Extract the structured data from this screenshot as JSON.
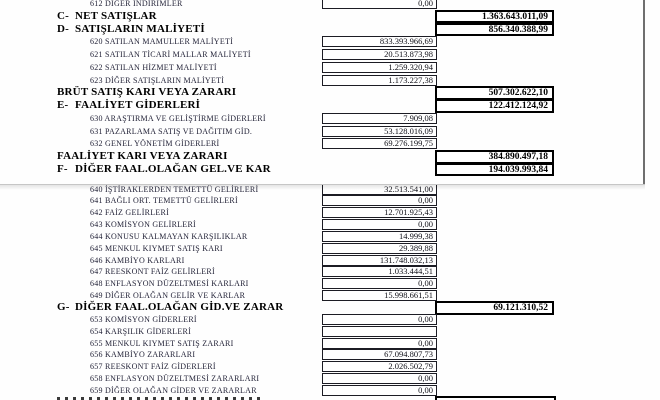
{
  "document": {
    "type_hint": "income-statement",
    "language": "tr"
  },
  "colors": {
    "page_background": "#ffffff",
    "detail_text": "#232338",
    "bold_text": "#000000",
    "box_border_thin": "#1c1c24",
    "box_border_thick": "#000000",
    "pane_vertical_line": "#6f6f6f",
    "pane_horizontal_line": "#c6c6c6"
  },
  "statement": {
    "rows": [
      {
        "kind": "detail",
        "code": "612",
        "label": "DİĞER İNDİRİMLER",
        "value": "0,00"
      },
      {
        "kind": "section",
        "letter": "C-",
        "label": "NET SATIŞLAR",
        "value": "1.363.643.011,09"
      },
      {
        "kind": "section",
        "letter": "D-",
        "label": "SATIŞLARIN MALİYETİ",
        "value": "856.340.388,99"
      },
      {
        "kind": "detail",
        "code": "620",
        "label": "SATILAN MAMULLER MALİYETİ",
        "value": "833.393.966,69"
      },
      {
        "kind": "detail",
        "code": "621",
        "label": "SATILAN TİCARİ MALLAR MALİYETİ",
        "value": "20.513.873,98"
      },
      {
        "kind": "detail",
        "code": "622",
        "label": "SATILAN HİZMET MALİYETİ",
        "value": "1.259.320,94"
      },
      {
        "kind": "detail",
        "code": "623",
        "label": "DİĞER SATIŞLARIN MALİYETİ",
        "value": "1.173.227,38"
      },
      {
        "kind": "total",
        "label": "BRÜT SATIŞ KARI VEYA ZARARI",
        "value": "507.302.622,10"
      },
      {
        "kind": "section",
        "letter": "E-",
        "label": "FAALİYET GİDERLERİ",
        "value": "122.412.124,92"
      },
      {
        "kind": "detail",
        "code": "630",
        "label": "ARAŞTIRMA VE GELİŞTİRME GİDERLERİ",
        "value": "7.909,08"
      },
      {
        "kind": "detail",
        "code": "631",
        "label": "PAZARLAMA SATIŞ VE DAĞITIM GİD.",
        "value": "53.128.016,09"
      },
      {
        "kind": "detail",
        "code": "632",
        "label": "GENEL YÖNETİM GİDERLERİ",
        "value": "69.276.199,75"
      },
      {
        "kind": "total",
        "label": "FAALİYET KARI VEYA ZARARI",
        "value": "384.890.497,18"
      },
      {
        "kind": "section",
        "letter": "F-",
        "label": "DİĞER FAAL.OLAĞAN GEL.VE KAR",
        "value": "194.039.993,84"
      },
      {
        "kind": "detail",
        "code": "640",
        "label": "İŞTİRAKLERDEN TEMETTÜ GELİRLERİ",
        "value": "32.513.541,00"
      },
      {
        "kind": "detail",
        "code": "641",
        "label": "BAĞLI ORT. TEMETTÜ GELİRLERİ",
        "value": "0,00"
      },
      {
        "kind": "detail",
        "code": "642",
        "label": "FAİZ GELİRLERİ",
        "value": "12.701.925,43"
      },
      {
        "kind": "detail",
        "code": "643",
        "label": "KOMİSYON GELİRLERİ",
        "value": "0,00"
      },
      {
        "kind": "detail",
        "code": "644",
        "label": "KONUSU KALMAYAN KARŞILIKLAR",
        "value": "14.999,38"
      },
      {
        "kind": "detail",
        "code": "645",
        "label": "MENKUL KIYMET SATIŞ KARI",
        "value": "29.389,88"
      },
      {
        "kind": "detail",
        "code": "646",
        "label": "KAMBİYO KARLARI",
        "value": "131.748.032,13"
      },
      {
        "kind": "detail",
        "code": "647",
        "label": "REESKONT FAİZ GELİRLERİ",
        "value": "1.033.444,51"
      },
      {
        "kind": "detail",
        "code": "648",
        "label": "ENFLASYON DÜZELTMESİ KARLARI",
        "value": "0,00"
      },
      {
        "kind": "detail",
        "code": "649",
        "label": "DİĞER OLAĞAN GELİR VE KARLAR",
        "value": "15.998.661,51"
      },
      {
        "kind": "section",
        "letter": "G-",
        "label": "DİĞER FAAL.OLAĞAN GİD.VE ZARAR",
        "value": "69.121.310,52"
      },
      {
        "kind": "detail",
        "code": "653",
        "label": "KOMİSYON GİDERLERİ",
        "value": "0,00"
      },
      {
        "kind": "detail",
        "code": "654",
        "label": "KARŞILIK GİDERLERİ",
        "value": ""
      },
      {
        "kind": "detail",
        "code": "655",
        "label": "MENKUL KIYMET SATIŞ ZARARI",
        "value": "0,00"
      },
      {
        "kind": "detail",
        "code": "656",
        "label": "KAMBİYO ZARARLARI",
        "value": "67.094.807,73"
      },
      {
        "kind": "detail",
        "code": "657",
        "label": "REESKONT FAİZ GİDERLERİ",
        "value": "2.026.502,79"
      },
      {
        "kind": "detail",
        "code": "658",
        "label": "ENFLASYON DÜZELTMESİ ZARARLARI",
        "value": "0,00"
      },
      {
        "kind": "detail",
        "code": "659",
        "label": "DİĞER OLAĞAN GİDER VE ZARARLAR",
        "value": "0,00"
      }
    ],
    "partial_next_row": {
      "visible": true,
      "value_box_column": 2
    }
  }
}
